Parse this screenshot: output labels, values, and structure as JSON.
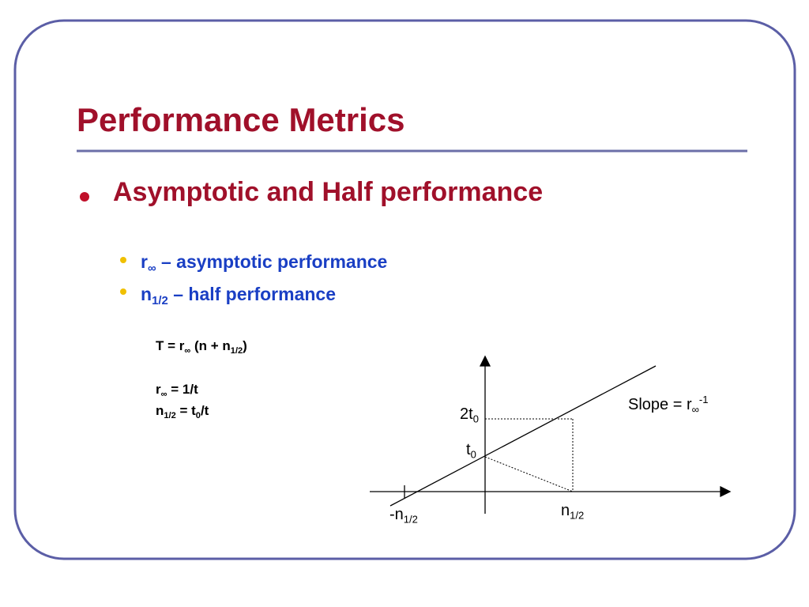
{
  "title": "Performance Metrics",
  "bullet": "Asymptotic and Half performance",
  "sub_bullets": [
    [
      "r",
      "∞",
      " – asymptotic performance"
    ],
    [
      "n",
      "1/2",
      " – half performance"
    ]
  ],
  "formulas": [
    [
      "T = r",
      "∞",
      " (n + n",
      "1/2",
      ")"
    ],
    [
      "r",
      "∞",
      " = 1/t"
    ],
    [
      "n",
      "1/2",
      " = t",
      "0",
      "/t"
    ]
  ],
  "diagram": {
    "y_label_high": [
      "2t",
      "0"
    ],
    "y_label_low": [
      "t",
      "0"
    ],
    "slope_label": [
      "Slope = r",
      "∞",
      "-1"
    ],
    "x_label_neg": [
      "-n",
      "1/2"
    ],
    "x_label_pos": [
      "n",
      "1/2"
    ]
  }
}
